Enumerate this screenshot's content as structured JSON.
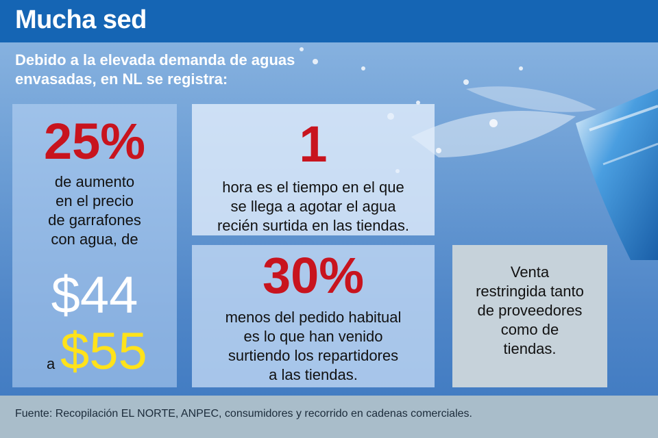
{
  "header": {
    "title": "Mucha sed"
  },
  "subtitle": "Debido a la elevada demanda de aguas envasadas, en NL se registra:",
  "stats": {
    "price": {
      "percent": "25%",
      "desc_lines": [
        "de aumento",
        "en el precio",
        "de garrafones",
        "con agua, de"
      ],
      "from": "$44",
      "to_prefix": "a",
      "to": "$55"
    },
    "hours": {
      "value": "1",
      "desc_lines": [
        "hora es el tiempo en el que",
        "se llega a agotar el agua",
        "recién surtida en las tiendas."
      ]
    },
    "orders": {
      "percent": "30%",
      "desc_lines": [
        "menos del pedido habitual",
        "es lo que han venido",
        "surtiendo los repartidores",
        "a las tiendas."
      ]
    },
    "sales": {
      "desc_lines": [
        "Venta",
        "restringida tanto",
        "de proveedores",
        "como de",
        "tiendas."
      ]
    }
  },
  "footer": {
    "source": "Fuente: Recopilación EL NORTE, ANPEC, consumidores y recorrido en cadenas comerciales."
  },
  "colors": {
    "header_bg": "#1565b4",
    "accent_red": "#c8141e",
    "accent_yellow": "#ffe21a",
    "footer_bg": "#a9bdca"
  },
  "decorations": [
    "water-splash-image",
    "water-bottle-image"
  ]
}
